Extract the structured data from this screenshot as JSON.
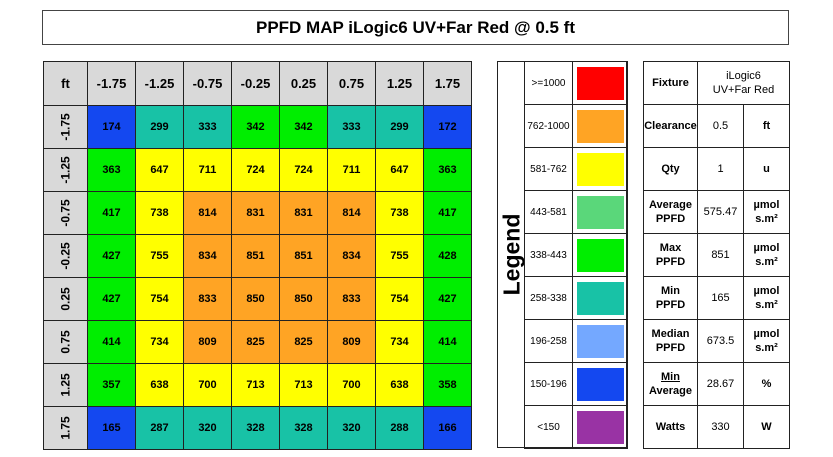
{
  "title": "PPFD MAP iLogic6 UV+Far Red @ 0.5 ft",
  "chart_data": {
    "type": "heatmap",
    "corner_label": "ft",
    "x": [
      "-1.75",
      "-1.25",
      "-0.75",
      "-0.25",
      "0.25",
      "0.75",
      "1.25",
      "1.75"
    ],
    "y": [
      "-1.75",
      "-1.25",
      "-0.75",
      "-0.25",
      "0.25",
      "0.75",
      "1.25",
      "1.75"
    ],
    "values": [
      [
        174,
        299,
        333,
        342,
        342,
        333,
        299,
        172
      ],
      [
        363,
        647,
        711,
        724,
        724,
        711,
        647,
        363
      ],
      [
        417,
        738,
        814,
        831,
        831,
        814,
        738,
        417
      ],
      [
        427,
        755,
        834,
        851,
        851,
        834,
        755,
        428
      ],
      [
        427,
        754,
        833,
        850,
        850,
        833,
        754,
        427
      ],
      [
        414,
        734,
        809,
        825,
        825,
        809,
        734,
        414
      ],
      [
        357,
        638,
        700,
        713,
        713,
        700,
        638,
        358
      ],
      [
        165,
        287,
        320,
        328,
        328,
        320,
        288,
        166
      ]
    ]
  },
  "legend": {
    "title": "Legend",
    "items": [
      {
        "range": ">=1000",
        "min": 1000,
        "color": "#ff0000"
      },
      {
        "range": "762-1000",
        "min": 762,
        "color": "#ffa424"
      },
      {
        "range": "581-762",
        "min": 581,
        "color": "#ffff00"
      },
      {
        "range": "443-581",
        "min": 443,
        "color": "#5ad77a"
      },
      {
        "range": "338-443",
        "min": 338,
        "color": "#00ee00"
      },
      {
        "range": "258-338",
        "min": 258,
        "color": "#18c2a6"
      },
      {
        "range": "196-258",
        "min": 196,
        "color": "#74a8ff"
      },
      {
        "range": "150-196",
        "min": 150,
        "color": "#1448f0"
      },
      {
        "range": "<150",
        "min": 0,
        "color": "#9933a4"
      }
    ]
  },
  "stats": {
    "fixture": {
      "label": "Fixture",
      "value": "iLogic6 UV+Far Red"
    },
    "clearance": {
      "label": "Clearance",
      "value": "0.5",
      "unit": "ft"
    },
    "qty": {
      "label": "Qty",
      "value": "1",
      "unit": "u"
    },
    "average": {
      "label": "Average PPFD",
      "value": "575.47",
      "unit": "µmol s.m²"
    },
    "max": {
      "label": "Max PPFD",
      "value": "851",
      "unit": "µmol s.m²"
    },
    "min": {
      "label": "Min PPFD",
      "value": "165",
      "unit": "µmol s.m²"
    },
    "median": {
      "label": "Median PPFD",
      "value": "673.5",
      "unit": "µmol s.m²"
    },
    "uniformity": {
      "num": "Min",
      "den": "Average",
      "value": "28.67",
      "unit": "%"
    },
    "watts": {
      "label": "Watts",
      "value": "330",
      "unit": "W"
    }
  }
}
